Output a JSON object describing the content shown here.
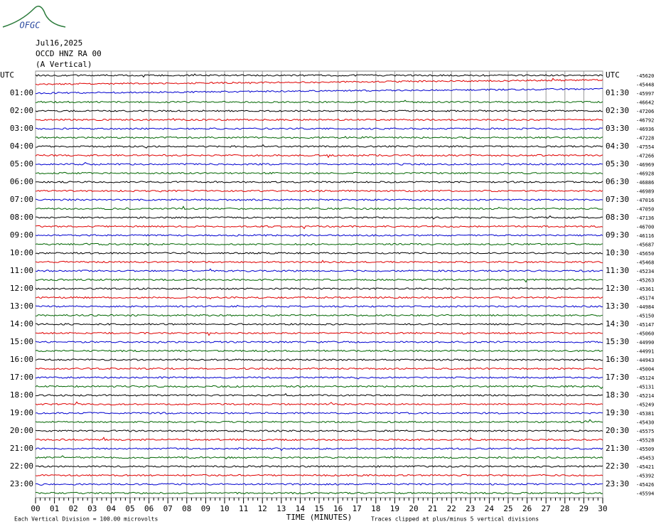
{
  "logo": "OFGC",
  "header": {
    "date": "Jul16,2025",
    "station": "OCCD HNZ RA 00",
    "component": "(A Vertical)"
  },
  "left_labels": [
    "UTC",
    "01:00",
    "02:00",
    "03:00",
    "04:00",
    "05:00",
    "06:00",
    "07:00",
    "08:00",
    "09:00",
    "10:00",
    "11:00",
    "12:00",
    "13:00",
    "14:00",
    "15:00",
    "16:00",
    "17:00",
    "18:00",
    "19:00",
    "20:00",
    "21:00",
    "22:00",
    "23:00"
  ],
  "right_labels": [
    "UTC",
    "01:30",
    "02:30",
    "03:30",
    "04:30",
    "05:30",
    "06:30",
    "07:30",
    "08:30",
    "09:30",
    "10:30",
    "11:30",
    "12:30",
    "13:30",
    "14:30",
    "15:30",
    "16:30",
    "17:30",
    "18:30",
    "19:30",
    "20:30",
    "21:30",
    "22:30",
    "23:30"
  ],
  "trace_offsets": [
    -45620,
    -45448,
    -45997,
    -46642,
    -47206,
    -46792,
    -46936,
    -47228,
    -47554,
    -47266,
    -46969,
    -46928,
    -46886,
    -46989,
    -47016,
    -47050,
    -47136,
    -46700,
    -46116,
    -45687,
    -45650,
    -45468,
    -45234,
    -45263,
    -45361,
    -45174,
    -44984,
    -45150,
    -45147,
    -45060,
    -44990,
    -44991,
    -44943,
    -45004,
    -45124,
    -45131,
    -45214,
    -45249,
    -45381,
    -45430,
    -45575,
    -45528,
    -45509,
    -45453,
    -45421,
    -45392,
    -45426,
    -45594
  ],
  "x_ticks": [
    "00",
    "01",
    "02",
    "03",
    "04",
    "05",
    "06",
    "07",
    "08",
    "09",
    "10",
    "11",
    "12",
    "13",
    "14",
    "15",
    "16",
    "17",
    "18",
    "19",
    "20",
    "21",
    "22",
    "23",
    "24",
    "25",
    "26",
    "27",
    "28",
    "29",
    "30"
  ],
  "x_axis_title": "TIME (MINUTES)",
  "footer": {
    "division": "Each Vertical Division =  100.00 microvolts",
    "clip": "Traces clipped at plus/minus 5 vertical divisions"
  }
}
